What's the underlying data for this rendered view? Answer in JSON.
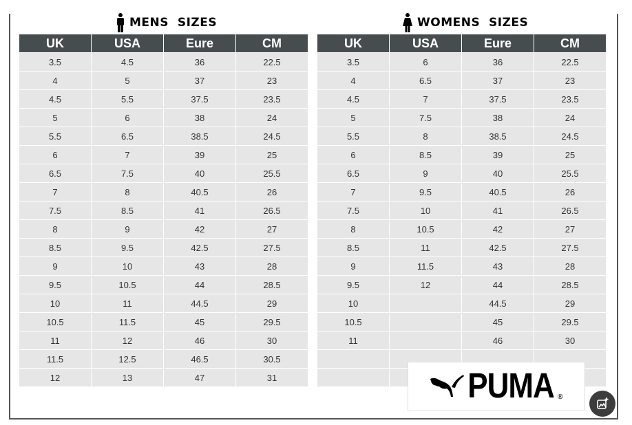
{
  "mens": {
    "title": "MENS  SIZES",
    "icon": "man-icon",
    "headers": [
      "UK",
      "USA",
      "Eure",
      "CM"
    ],
    "rows": [
      [
        "3.5",
        "4.5",
        "36",
        "22.5"
      ],
      [
        "4",
        "5",
        "37",
        "23"
      ],
      [
        "4.5",
        "5.5",
        "37.5",
        "23.5"
      ],
      [
        "5",
        "6",
        "38",
        "24"
      ],
      [
        "5.5",
        "6.5",
        "38.5",
        "24.5"
      ],
      [
        "6",
        "7",
        "39",
        "25"
      ],
      [
        "6.5",
        "7.5",
        "40",
        "25.5"
      ],
      [
        "7",
        "8",
        "40.5",
        "26"
      ],
      [
        "7.5",
        "8.5",
        "41",
        "26.5"
      ],
      [
        "8",
        "9",
        "42",
        "27"
      ],
      [
        "8.5",
        "9.5",
        "42.5",
        "27.5"
      ],
      [
        "9",
        "10",
        "43",
        "28"
      ],
      [
        "9.5",
        "10.5",
        "44",
        "28.5"
      ],
      [
        "10",
        "11",
        "44.5",
        "29"
      ],
      [
        "10.5",
        "11.5",
        "45",
        "29.5"
      ],
      [
        "11",
        "12",
        "46",
        "30"
      ],
      [
        "11.5",
        "12.5",
        "46.5",
        "30.5"
      ],
      [
        "12",
        "13",
        "47",
        "31"
      ]
    ]
  },
  "womens": {
    "title": "WOMENS  SIZES",
    "icon": "woman-icon",
    "headers": [
      "UK",
      "USA",
      "Eure",
      "CM"
    ],
    "rows": [
      [
        "3.5",
        "6",
        "36",
        "22.5"
      ],
      [
        "4",
        "6.5",
        "37",
        "23"
      ],
      [
        "4.5",
        "7",
        "37.5",
        "23.5"
      ],
      [
        "5",
        "7.5",
        "38",
        "24"
      ],
      [
        "5.5",
        "8",
        "38.5",
        "24.5"
      ],
      [
        "6",
        "8.5",
        "39",
        "25"
      ],
      [
        "6.5",
        "9",
        "40",
        "25.5"
      ],
      [
        "7",
        "9.5",
        "40.5",
        "26"
      ],
      [
        "7.5",
        "10",
        "41",
        "26.5"
      ],
      [
        "8",
        "10.5",
        "42",
        "27"
      ],
      [
        "8.5",
        "11",
        "42.5",
        "27.5"
      ],
      [
        "9",
        "11.5",
        "43",
        "28"
      ],
      [
        "9.5",
        "12",
        "44",
        "28.5"
      ],
      [
        "10",
        "",
        "44.5",
        "29"
      ],
      [
        "10.5",
        "",
        "45",
        "29.5"
      ],
      [
        "11",
        "",
        "46",
        "30"
      ],
      [
        "",
        "",
        "",
        ""
      ],
      [
        "",
        "",
        "",
        ""
      ]
    ]
  },
  "logo": {
    "text": "PUMA",
    "mark": "®"
  },
  "colors": {
    "header_bg": "#474d4e",
    "cell_bg": "#e6e6e6"
  }
}
